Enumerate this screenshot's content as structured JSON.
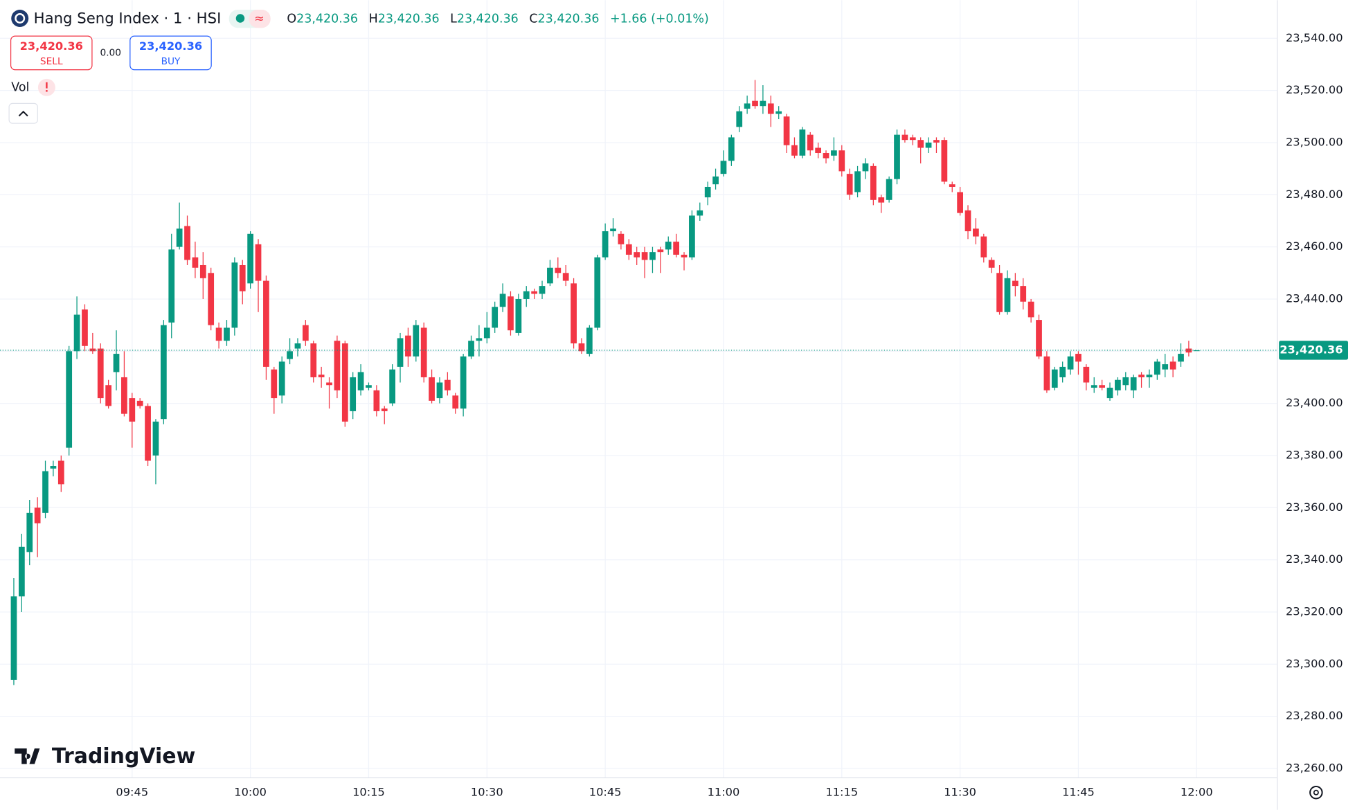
{
  "header": {
    "symbol": "Hang Seng Index · 1 · HSI",
    "ohlc": [
      {
        "key": "O",
        "value": "23,420.36"
      },
      {
        "key": "H",
        "value": "23,420.36"
      },
      {
        "key": "L",
        "value": "23,420.36"
      },
      {
        "key": "C",
        "value": "23,420.36"
      }
    ],
    "change": "+1.66 (+0.01%)"
  },
  "trade": {
    "sell_price": "23,420.36",
    "sell": "SELL",
    "spread": "0.00",
    "buy_price": "23,420.36",
    "buy": "BUY"
  },
  "volume_label": "Vol",
  "logo": "TradingView",
  "chart_data": {
    "type": "candlestick",
    "x": [
      "09:30",
      "09:31",
      "09:32",
      "09:33",
      "09:34",
      "09:35",
      "09:36",
      "09:37",
      "09:38",
      "09:39",
      "09:40",
      "09:41",
      "09:42",
      "09:43",
      "09:44",
      "09:45",
      "09:46",
      "09:47",
      "09:48",
      "09:49",
      "09:50",
      "09:51",
      "09:52",
      "09:53",
      "09:54",
      "09:55",
      "09:56",
      "09:57",
      "09:58",
      "09:59",
      "10:00",
      "10:01",
      "10:02",
      "10:03",
      "10:04",
      "10:05",
      "10:06",
      "10:07",
      "10:08",
      "10:09",
      "10:10",
      "10:11",
      "10:12",
      "10:13",
      "10:14",
      "10:15",
      "10:16",
      "10:17",
      "10:18",
      "10:19",
      "10:20",
      "10:21",
      "10:22",
      "10:23",
      "10:24",
      "10:25",
      "10:26",
      "10:27",
      "10:28",
      "10:29",
      "10:30",
      "10:31",
      "10:32",
      "10:33",
      "10:34",
      "10:35",
      "10:36",
      "10:37",
      "10:38",
      "10:39",
      "10:40",
      "10:41",
      "10:42",
      "10:43",
      "10:44",
      "10:45",
      "10:46",
      "10:47",
      "10:48",
      "10:49",
      "10:50",
      "10:51",
      "10:52",
      "10:53",
      "10:54",
      "10:55",
      "10:56",
      "10:57",
      "10:58",
      "10:59",
      "11:00",
      "11:01",
      "11:02",
      "11:03",
      "11:04",
      "11:05",
      "11:06",
      "11:07",
      "11:08",
      "11:09",
      "11:10",
      "11:11",
      "11:12",
      "11:13",
      "11:14",
      "11:15",
      "11:16",
      "11:17",
      "11:18",
      "11:19",
      "11:20",
      "11:21",
      "11:22",
      "11:23",
      "11:24",
      "11:25",
      "11:26",
      "11:27",
      "11:28",
      "11:29",
      "11:30",
      "11:31",
      "11:32",
      "11:33",
      "11:34",
      "11:35",
      "11:36",
      "11:37",
      "11:38",
      "11:39",
      "11:40",
      "11:41",
      "11:42",
      "11:43",
      "11:44",
      "11:45",
      "11:46",
      "11:47",
      "11:48",
      "11:49",
      "11:50",
      "11:51",
      "11:52",
      "11:53",
      "11:54",
      "11:55",
      "11:56",
      "11:57",
      "11:58",
      "11:59",
      "12:00"
    ],
    "open": [
      23294,
      23326,
      23343,
      23360,
      23358,
      23375,
      23378,
      23383,
      23420,
      23436,
      23421,
      23421,
      23407,
      23412,
      23410,
      23402,
      23401,
      23399,
      23380,
      23394,
      23431,
      23460,
      23468,
      23456,
      23453,
      23450,
      23429,
      23424,
      23429,
      23453,
      23446,
      23461,
      23447,
      23413,
      23403,
      23417,
      23421,
      23430,
      23423,
      23411,
      23408,
      23424,
      23423,
      23397,
      23405,
      23406,
      23405,
      23398,
      23400,
      23414,
      23426,
      23418,
      23429,
      23410,
      23402,
      23409,
      23403,
      23398,
      23418,
      23424,
      23425,
      23429,
      23437,
      23441,
      23427,
      23440,
      23443,
      23442,
      23446,
      23452,
      23450,
      23446,
      23423,
      23419,
      23429,
      23456,
      23466,
      23465,
      23461,
      23458,
      23458,
      23455,
      23459,
      23459,
      23462,
      23457,
      23456,
      23472,
      23479,
      23484,
      23488,
      23493,
      23506,
      23513,
      23516,
      23514,
      23515,
      23511,
      23510,
      23499,
      23495,
      23503,
      23498,
      23496,
      23495,
      23497,
      23488,
      23481,
      23489,
      23491,
      23479,
      23478,
      23486,
      23503,
      23502,
      23501,
      23498,
      23501,
      23501,
      23484,
      23481,
      23474,
      23467,
      23464,
      23455,
      23450,
      23435,
      23447,
      23445,
      23439,
      23432,
      23418,
      23406,
      23410,
      23413,
      23419,
      23414,
      23406,
      23407,
      23402,
      23405,
      23407,
      23405,
      23411,
      23410,
      23411,
      23413,
      23416,
      23416,
      23421,
      23420.36
    ],
    "high": [
      23333,
      23350,
      23363,
      23364,
      23378,
      23378,
      23380,
      23422,
      23441,
      23438,
      23427,
      23423,
      23409,
      23428,
      23420,
      23404,
      23402,
      23400,
      23394,
      23432,
      23465,
      23477,
      23472,
      23462,
      23458,
      23452,
      23431,
      23432,
      23456,
      23455,
      23466,
      23463,
      23449,
      23414,
      23418,
      23425,
      23425,
      23432,
      23424,
      23414,
      23410,
      23426,
      23424,
      23412,
      23415,
      23408,
      23407,
      23399,
      23415,
      23427,
      23429,
      23432,
      23431,
      23413,
      23410,
      23412,
      23404,
      23419,
      23426,
      23430,
      23435,
      23439,
      23446,
      23443,
      23442,
      23445,
      23444,
      23447,
      23455,
      23456,
      23453,
      23448,
      23425,
      23430,
      23457,
      23469,
      23471,
      23466,
      23463,
      23460,
      23460,
      23460,
      23460,
      23464,
      23465,
      23458,
      23474,
      23477,
      23485,
      23490,
      23497,
      23503,
      23514,
      23518,
      23524,
      23522,
      23518,
      23514,
      23511,
      23502,
      23506,
      23504,
      23500,
      23497,
      23502,
      23499,
      23490,
      23491,
      23494,
      23492,
      23480,
      23487,
      23505,
      23505,
      23503,
      23502,
      23502,
      23502,
      23502,
      23485,
      23483,
      23476,
      23471,
      23465,
      23456,
      23453,
      23451,
      23450,
      23448,
      23440,
      23434,
      23420,
      23414,
      23416,
      23420,
      23420,
      23415,
      23410,
      23409,
      23408,
      23410,
      23412,
      23411,
      23412,
      23413,
      23417,
      23419,
      23418,
      23423,
      23424,
      23420.36
    ],
    "low": [
      23292,
      23320,
      23338,
      23341,
      23356,
      23372,
      23366,
      23380,
      23417,
      23420,
      23419,
      23400,
      23398,
      23405,
      23395,
      23383,
      23398,
      23376,
      23369,
      23392,
      23425,
      23459,
      23453,
      23448,
      23440,
      23428,
      23421,
      23422,
      23426,
      23438,
      23444,
      23435,
      23409,
      23396,
      23400,
      23415,
      23418,
      23422,
      23408,
      23406,
      23398,
      23402,
      23391,
      23394,
      23403,
      23405,
      23395,
      23392,
      23399,
      23408,
      23414,
      23416,
      23408,
      23400,
      23400,
      23403,
      23396,
      23395,
      23417,
      23418,
      23423,
      23427,
      23435,
      23426,
      23426,
      23437,
      23440,
      23440,
      23445,
      23448,
      23445,
      23421,
      23419,
      23418,
      23428,
      23455,
      23464,
      23459,
      23455,
      23453,
      23448,
      23450,
      23450,
      23457,
      23456,
      23451,
      23455,
      23470,
      23476,
      23482,
      23487,
      23491,
      23504,
      23511,
      23513,
      23511,
      23506,
      23509,
      23496,
      23494,
      23494,
      23495,
      23494,
      23492,
      23493,
      23487,
      23478,
      23479,
      23486,
      23476,
      23473,
      23477,
      23484,
      23500,
      23499,
      23492,
      23496,
      23496,
      23484,
      23481,
      23472,
      23463,
      23461,
      23454,
      23450,
      23434,
      23434,
      23441,
      23436,
      23431,
      23417,
      23404,
      23405,
      23408,
      23411,
      23411,
      23405,
      23404,
      23405,
      23401,
      23403,
      23405,
      23402,
      23406,
      23406,
      23409,
      23410,
      23410,
      23414,
      23418,
      23420.36
    ],
    "close": [
      23326,
      23345,
      23358,
      23354,
      23374,
      23376,
      23369,
      23420,
      23434,
      23422,
      23420,
      23402,
      23399,
      23419,
      23396,
      23393,
      23399,
      23378,
      23393,
      23430,
      23459,
      23467,
      23455,
      23452,
      23448,
      23430,
      23424,
      23429,
      23454,
      23443,
      23465,
      23447,
      23414,
      23402,
      23416,
      23420,
      23423,
      23424,
      23410,
      23410,
      23407,
      23405,
      23393,
      23410,
      23412,
      23407,
      23397,
      23397,
      23413,
      23425,
      23418,
      23430,
      23410,
      23401,
      23408,
      23405,
      23398,
      23418,
      23424,
      23425,
      23429,
      23437,
      23442,
      23428,
      23440,
      23443,
      23442,
      23445,
      23452,
      23450,
      23447,
      23423,
      23420,
      23429,
      23456,
      23466,
      23467,
      23461,
      23457,
      23456,
      23455,
      23458,
      23458,
      23462,
      23457,
      23456,
      23472,
      23474,
      23483,
      23487,
      23493,
      23502,
      23512,
      23515,
      23514,
      23516,
      23511,
      23512,
      23499,
      23495,
      23505,
      23497,
      23496,
      23494,
      23497,
      23489,
      23480,
      23489,
      23492,
      23478,
      23477,
      23486,
      23503,
      23501,
      23501,
      23498,
      23500,
      23500,
      23485,
      23483,
      23473,
      23466,
      23464,
      23456,
      23452,
      23435,
      23448,
      23445,
      23439,
      23433,
      23418,
      23405,
      23413,
      23414,
      23418,
      23416,
      23408,
      23407,
      23406,
      23406,
      23409,
      23410,
      23410,
      23410,
      23411,
      23416,
      23415,
      23413,
      23419,
      23419.5,
      23420.36
    ],
    "up_color": "#089981",
    "down_color": "#f23645",
    "ylim": [
      23256.4,
      23554.6
    ],
    "yticks": [
      {
        "value": 23260,
        "label": "23,260.00"
      },
      {
        "value": 23280,
        "label": "23,280.00"
      },
      {
        "value": 23300,
        "label": "23,300.00"
      },
      {
        "value": 23320,
        "label": "23,320.00"
      },
      {
        "value": 23340,
        "label": "23,340.00"
      },
      {
        "value": 23360,
        "label": "23,360.00"
      },
      {
        "value": 23380,
        "label": "23,380.00"
      },
      {
        "value": 23400,
        "label": "23,400.00"
      },
      {
        "value": 23420,
        "label": "23,420.00"
      },
      {
        "value": 23440,
        "label": "23,440.00"
      },
      {
        "value": 23460,
        "label": "23,460.00"
      },
      {
        "value": 23480,
        "label": "23,480.00"
      },
      {
        "value": 23500,
        "label": "23,500.00"
      },
      {
        "value": 23520,
        "label": "23,520.00"
      },
      {
        "value": 23540,
        "label": "23,540.00"
      }
    ],
    "xticks": [
      "09:45",
      "10:00",
      "10:15",
      "10:30",
      "10:45",
      "11:00",
      "11:15",
      "11:30",
      "11:45",
      "12:00"
    ],
    "last_price": {
      "value": 23420.36,
      "label": "23,420.36"
    },
    "grid": true
  }
}
